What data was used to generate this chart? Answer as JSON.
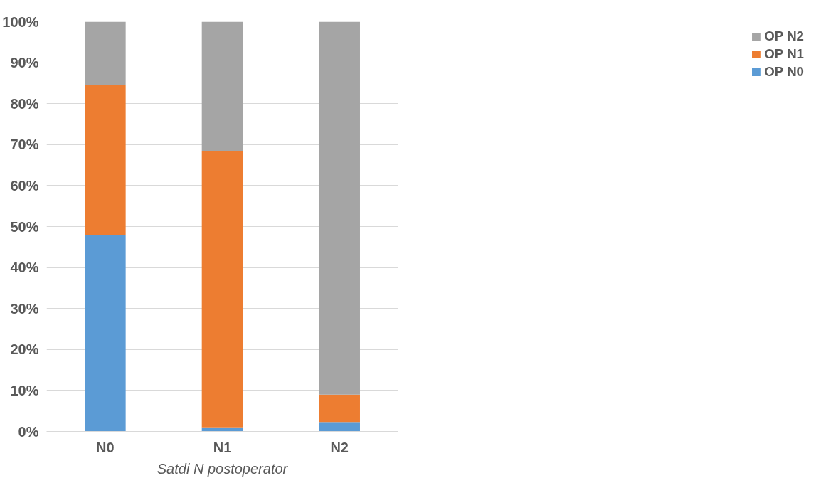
{
  "chart_data": {
    "type": "bar",
    "stacked": true,
    "xlabel": "Satdi N postoperator",
    "categories": [
      "N0",
      "N1",
      "N2"
    ],
    "series": [
      {
        "name": "OP N0",
        "color": "#5b9bd5",
        "values": [
          48,
          1,
          2.3
        ]
      },
      {
        "name": "OP N1",
        "color": "#ed7d31",
        "values": [
          36.6,
          67.5,
          6.7
        ]
      },
      {
        "name": "OP N2",
        "color": "#a5a5a5",
        "values": [
          15.4,
          31.5,
          91
        ]
      }
    ],
    "ylim": [
      0,
      100
    ],
    "yticks": [
      {
        "value": 0,
        "label": "0%"
      },
      {
        "value": 10,
        "label": "10%"
      },
      {
        "value": 20,
        "label": "20%"
      },
      {
        "value": 30,
        "label": "30%"
      },
      {
        "value": 40,
        "label": "40%"
      },
      {
        "value": 50,
        "label": "50%"
      },
      {
        "value": 60,
        "label": "60%"
      },
      {
        "value": 70,
        "label": "70%"
      },
      {
        "value": 80,
        "label": "80%"
      },
      {
        "value": 90,
        "label": "90%"
      },
      {
        "value": 100,
        "label": "100%"
      }
    ],
    "grid": "y",
    "legend": "right"
  }
}
